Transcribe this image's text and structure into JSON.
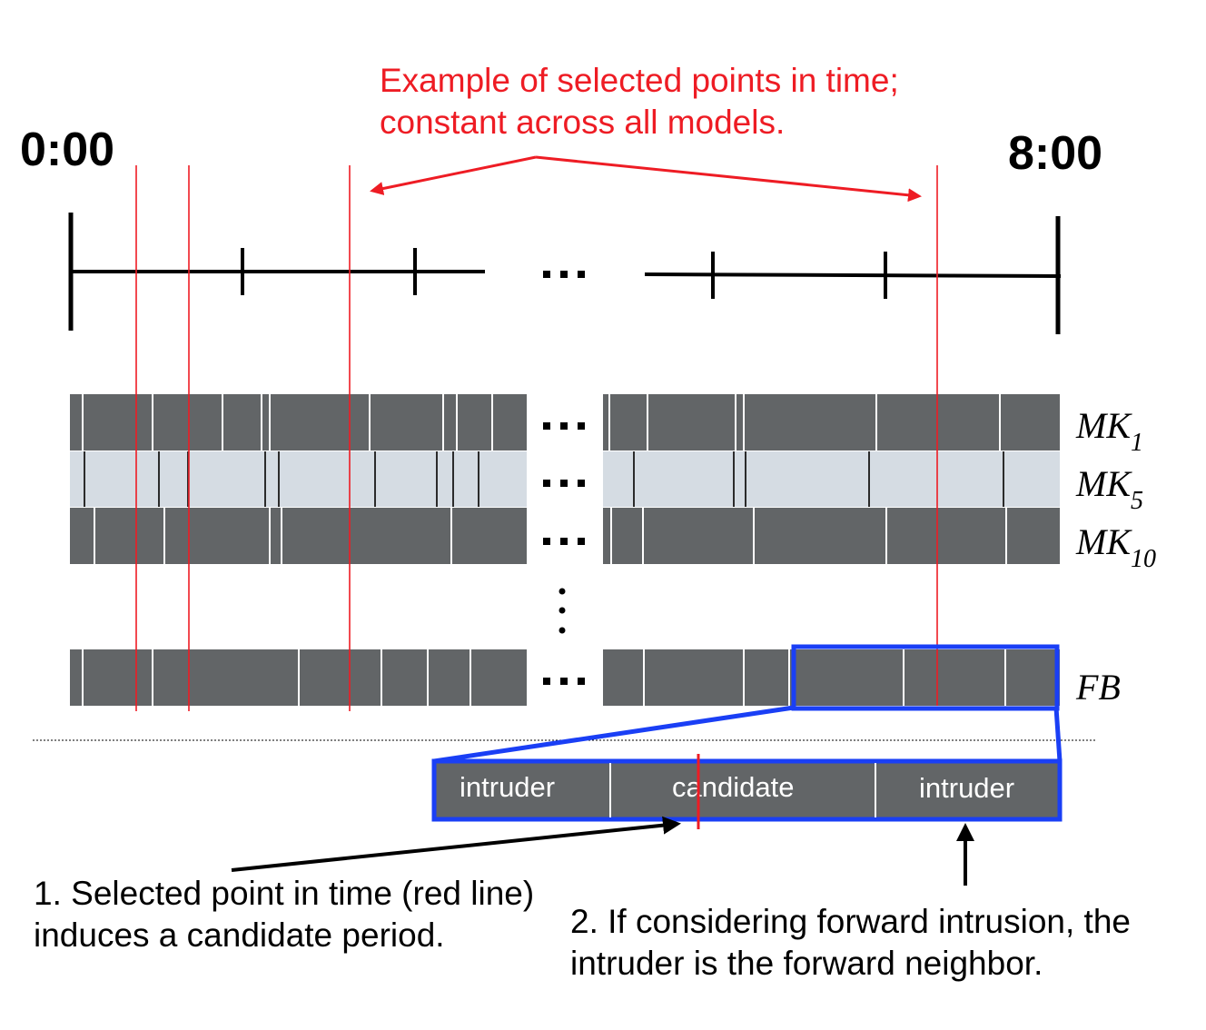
{
  "timeline": {
    "start_label": "0:00",
    "end_label": "8:00",
    "ellipsis": "..."
  },
  "rows": [
    {
      "name": "MK",
      "subscript": "1",
      "shade": "dark"
    },
    {
      "name": "MK",
      "subscript": "5",
      "shade": "light"
    },
    {
      "name": "MK",
      "subscript": "10",
      "shade": "dark"
    },
    {
      "name": "FB",
      "subscript": "",
      "shade": "dark"
    }
  ],
  "vertical_ellipsis": "⋮",
  "zoom": {
    "periods": [
      "intruder",
      "candidate",
      "intruder"
    ]
  },
  "annotations": {
    "selected_points": "Example of selected points in time; constant across all models.",
    "note_1": "1. Selected point in time (red line) induces a candidate period.",
    "note_2": "2. If considering forward intrusion, the intruder is the forward neighbor."
  },
  "colors": {
    "dark_bar": "#626567",
    "light_bar": "#d5dce3",
    "red": "#ee1c24",
    "blue": "#1a3ff5"
  }
}
